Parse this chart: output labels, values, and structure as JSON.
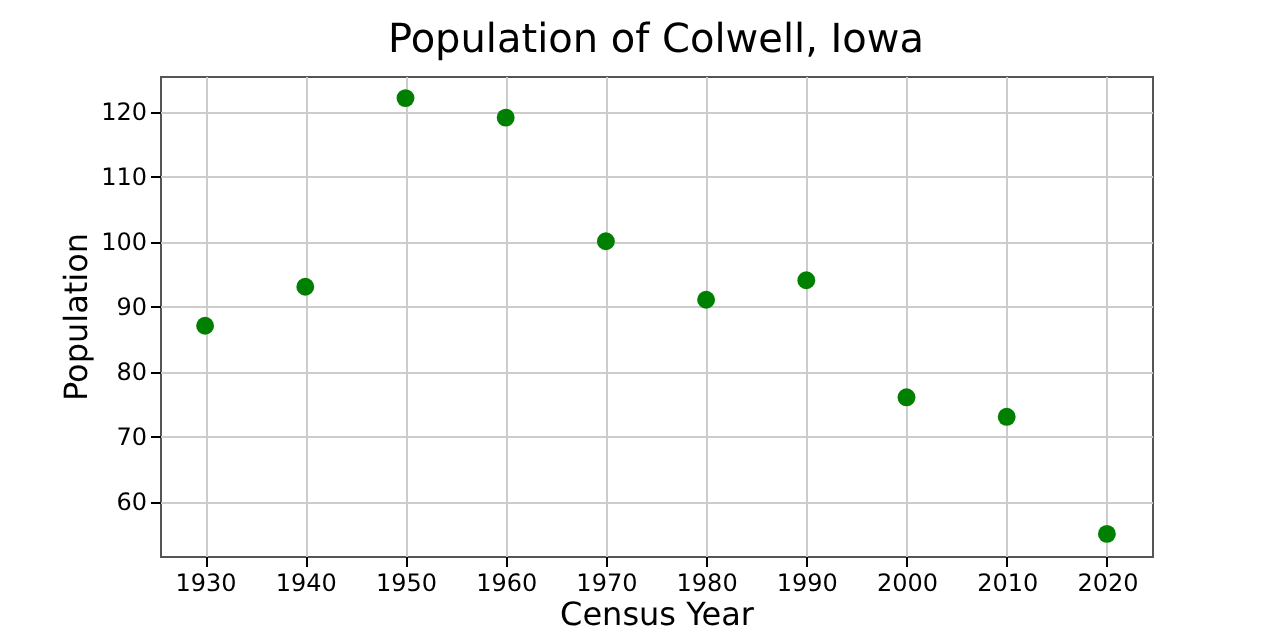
{
  "chart_data": {
    "type": "scatter",
    "title": "Population of Colwell, Iowa",
    "xlabel": "Census Year",
    "ylabel": "Population",
    "x": [
      1930,
      1940,
      1950,
      1960,
      1970,
      1980,
      1990,
      2000,
      2010,
      2020
    ],
    "series": [
      {
        "color": "#008000",
        "values": [
          87,
          93,
          122,
          119,
          100,
          91,
          94,
          76,
          73,
          55
        ]
      }
    ],
    "xlim": [
      1925.5,
      2024.5
    ],
    "ylim": [
      51.6,
      125.4
    ],
    "xticks": [
      1930,
      1940,
      1950,
      1960,
      1970,
      1980,
      1990,
      2000,
      2010,
      2020
    ],
    "yticks": [
      60,
      70,
      80,
      90,
      100,
      110,
      120
    ],
    "grid": true,
    "marker": "circle"
  }
}
